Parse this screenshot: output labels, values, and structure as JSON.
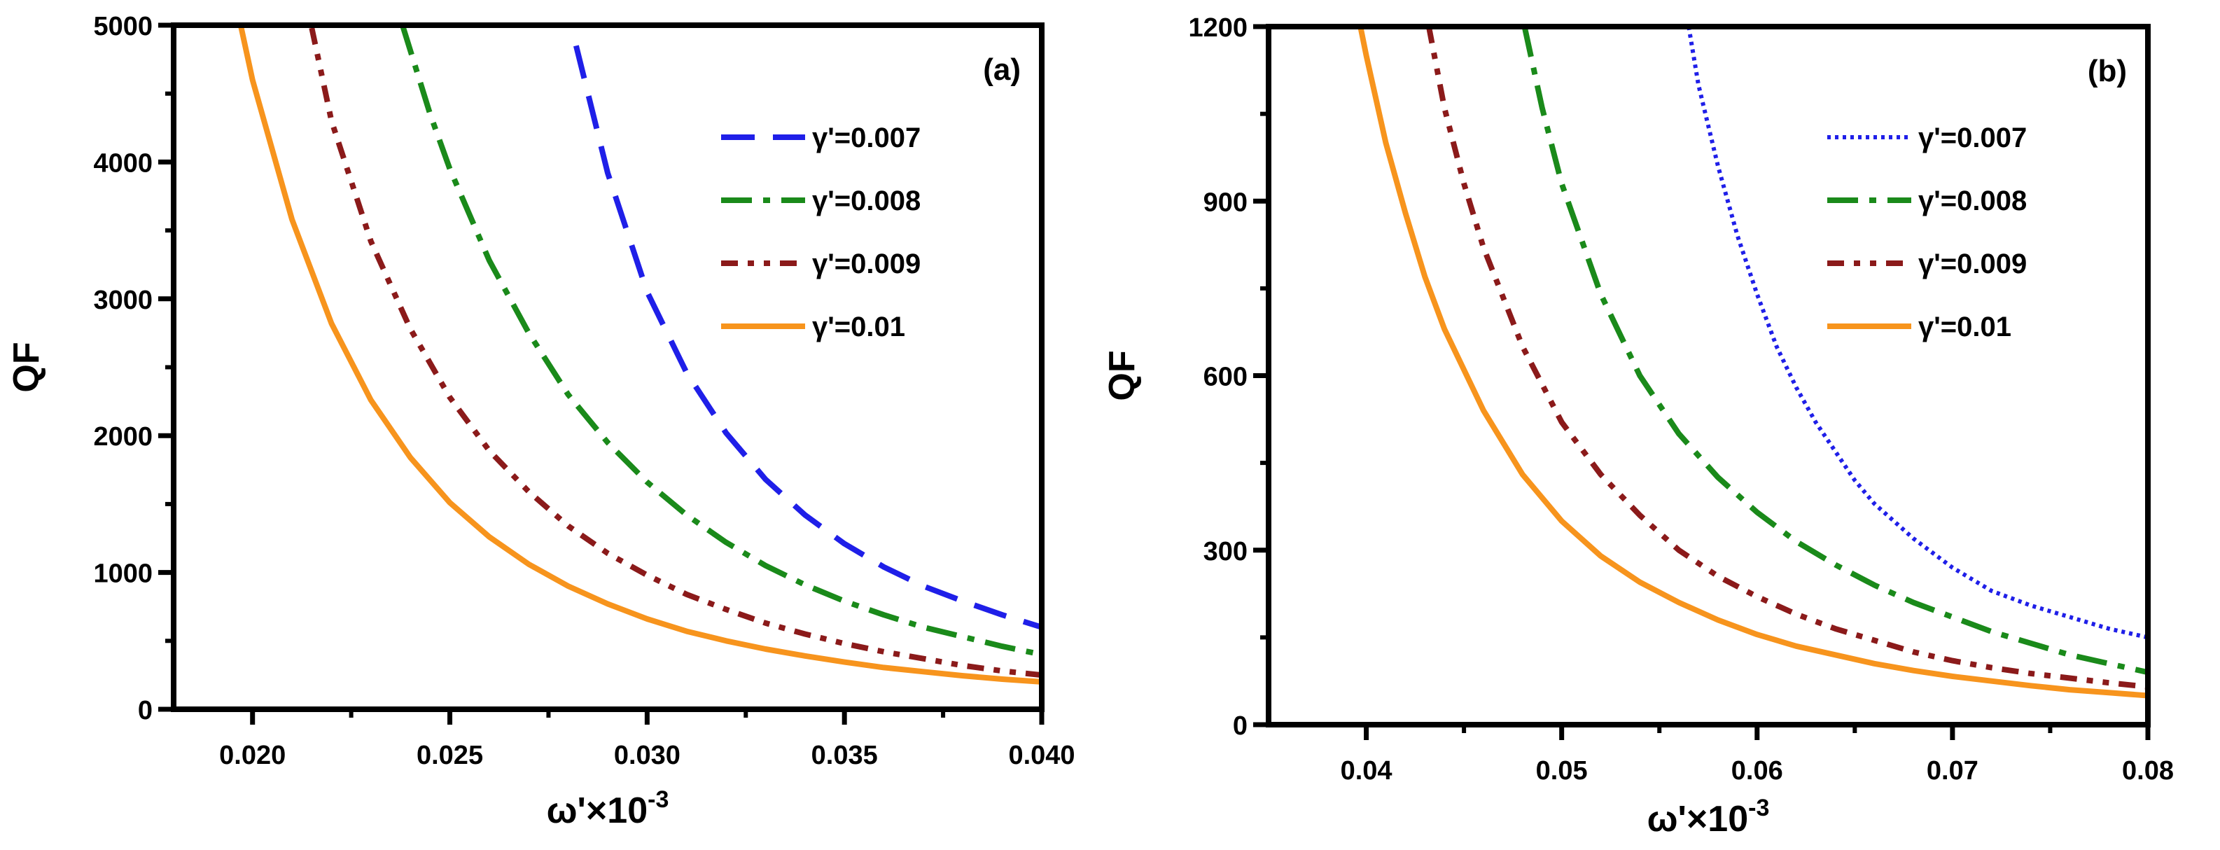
{
  "chart_data": [
    {
      "type": "line",
      "panel_label": "(a)",
      "xlabel": {
        "base": "ω'×10",
        "exp": "-3"
      },
      "ylabel": "QF",
      "xlim": [
        0.018,
        0.04
      ],
      "ylim": [
        0,
        5000
      ],
      "xticks": [
        0.02,
        0.025,
        0.03,
        0.035,
        0.04
      ],
      "xtick_labels": [
        "0.020",
        "0.025",
        "0.030",
        "0.035",
        "0.040"
      ],
      "yticks": [
        0,
        1000,
        2000,
        3000,
        4000,
        5000
      ],
      "ytick_labels": [
        "0",
        "1000",
        "2000",
        "3000",
        "4000",
        "5000"
      ],
      "legend_position": "top-right",
      "series": [
        {
          "name": "γ'=0.007",
          "color": "#1f1fe8",
          "style": "dash",
          "x": [
            0.0282,
            0.029,
            0.03,
            0.031,
            0.032,
            0.033,
            0.034,
            0.035,
            0.036,
            0.037,
            0.038,
            0.039,
            0.04
          ],
          "y": [
            4850,
            3920,
            3050,
            2460,
            2020,
            1680,
            1420,
            1210,
            1040,
            900,
            790,
            690,
            600
          ]
        },
        {
          "name": "γ'=0.008",
          "color": "#1a8a1a",
          "style": "dashdot",
          "x": [
            0.0238,
            0.0245,
            0.025,
            0.026,
            0.027,
            0.028,
            0.029,
            0.03,
            0.031,
            0.032,
            0.033,
            0.034,
            0.035,
            0.036,
            0.037,
            0.038,
            0.039,
            0.04
          ],
          "y": [
            5000,
            4350,
            3950,
            3280,
            2750,
            2300,
            1950,
            1660,
            1420,
            1220,
            1050,
            910,
            790,
            690,
            600,
            530,
            460,
            400
          ]
        },
        {
          "name": "γ'=0.009",
          "color": "#8b1a1a",
          "style": "dashdotdot",
          "x": [
            0.0215,
            0.022,
            0.023,
            0.024,
            0.025,
            0.026,
            0.027,
            0.028,
            0.029,
            0.03,
            0.031,
            0.032,
            0.033,
            0.034,
            0.035,
            0.036,
            0.037,
            0.038,
            0.039,
            0.04
          ],
          "y": [
            4980,
            4300,
            3420,
            2780,
            2280,
            1890,
            1590,
            1340,
            1140,
            980,
            840,
            730,
            630,
            550,
            480,
            420,
            370,
            320,
            280,
            250
          ]
        },
        {
          "name": "γ'=0.01",
          "color": "#f7941d",
          "style": "solid",
          "x": [
            0.0197,
            0.02,
            0.021,
            0.022,
            0.023,
            0.024,
            0.025,
            0.026,
            0.027,
            0.028,
            0.029,
            0.03,
            0.031,
            0.032,
            0.033,
            0.034,
            0.035,
            0.036,
            0.037,
            0.038,
            0.039,
            0.04
          ],
          "y": [
            5000,
            4600,
            3580,
            2820,
            2260,
            1840,
            1510,
            1260,
            1060,
            900,
            770,
            660,
            570,
            500,
            440,
            390,
            345,
            305,
            275,
            245,
            220,
            200
          ]
        }
      ]
    },
    {
      "type": "line",
      "panel_label": "(b)",
      "xlabel": {
        "base": "ω'×10",
        "exp": "-3"
      },
      "ylabel": "QF",
      "xlim": [
        0.035,
        0.08
      ],
      "ylim": [
        0,
        1200
      ],
      "xticks": [
        0.04,
        0.05,
        0.06,
        0.07,
        0.08
      ],
      "xtick_labels": [
        "0.04",
        "0.05",
        "0.06",
        "0.07",
        "0.08"
      ],
      "yticks": [
        0,
        300,
        600,
        900,
        1200
      ],
      "ytick_labels": [
        "0",
        "300",
        "600",
        "900",
        "1200"
      ],
      "legend_position": "top-right",
      "series": [
        {
          "name": "γ'=0.007",
          "color": "#1f1fe8",
          "style": "dot",
          "x": [
            0.0565,
            0.057,
            0.058,
            0.059,
            0.06,
            0.061,
            0.062,
            0.063,
            0.064,
            0.065,
            0.066,
            0.068,
            0.07,
            0.072,
            0.074,
            0.076,
            0.078,
            0.08
          ],
          "y": [
            1200,
            1100,
            960,
            840,
            740,
            650,
            580,
            520,
            470,
            420,
            380,
            320,
            270,
            230,
            205,
            185,
            165,
            150
          ]
        },
        {
          "name": "γ'=0.008",
          "color": "#1a8a1a",
          "style": "dashdot",
          "x": [
            0.0481,
            0.049,
            0.05,
            0.052,
            0.054,
            0.056,
            0.058,
            0.06,
            0.062,
            0.064,
            0.066,
            0.068,
            0.07,
            0.072,
            0.074,
            0.076,
            0.078,
            0.08
          ],
          "y": [
            1200,
            1060,
            930,
            740,
            600,
            500,
            425,
            365,
            315,
            275,
            240,
            210,
            185,
            160,
            140,
            120,
            105,
            90
          ]
        },
        {
          "name": "γ'=0.009",
          "color": "#8b1a1a",
          "style": "dashdotdot",
          "x": [
            0.0432,
            0.044,
            0.045,
            0.046,
            0.048,
            0.05,
            0.052,
            0.054,
            0.056,
            0.058,
            0.06,
            0.062,
            0.064,
            0.066,
            0.068,
            0.07,
            0.072,
            0.074,
            0.076,
            0.078,
            0.08
          ],
          "y": [
            1200,
            1060,
            930,
            820,
            650,
            520,
            430,
            360,
            300,
            255,
            220,
            190,
            165,
            145,
            125,
            110,
            98,
            88,
            80,
            72,
            65
          ]
        },
        {
          "name": "γ'=0.01",
          "color": "#f7941d",
          "style": "solid",
          "x": [
            0.0397,
            0.04,
            0.041,
            0.042,
            0.043,
            0.044,
            0.046,
            0.048,
            0.05,
            0.052,
            0.054,
            0.056,
            0.058,
            0.06,
            0.062,
            0.064,
            0.066,
            0.068,
            0.07,
            0.072,
            0.074,
            0.076,
            0.078,
            0.08
          ],
          "y": [
            1200,
            1150,
            1000,
            880,
            770,
            680,
            540,
            430,
            350,
            290,
            245,
            210,
            180,
            155,
            135,
            120,
            105,
            93,
            83,
            75,
            67,
            60,
            55,
            50
          ]
        }
      ]
    }
  ]
}
